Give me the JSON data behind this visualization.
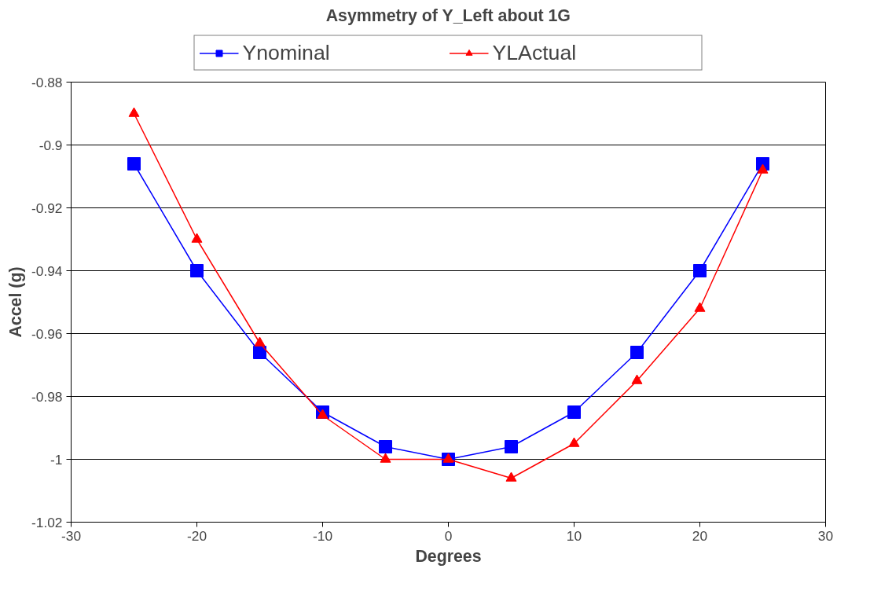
{
  "chart_data": {
    "type": "line",
    "title": "Asymmetry of Y_Left about 1G",
    "xlabel": "Degrees",
    "ylabel": "Accel (g)",
    "x": [
      -25,
      -20,
      -15,
      -10,
      -5,
      0,
      5,
      10,
      15,
      20,
      25
    ],
    "series": [
      {
        "name": "Ynominal",
        "color": "#0000ff",
        "marker": "square",
        "values": [
          -0.906,
          -0.94,
          -0.966,
          -0.985,
          -0.996,
          -1.0,
          -0.996,
          -0.985,
          -0.966,
          -0.94,
          -0.906
        ]
      },
      {
        "name": "YLActual",
        "color": "#ff0000",
        "marker": "triangle",
        "values": [
          -0.89,
          -0.93,
          -0.963,
          -0.986,
          -1.0,
          -1.0,
          -1.006,
          -0.995,
          -0.975,
          -0.952,
          -0.908
        ]
      }
    ],
    "xlim": [
      -30,
      30
    ],
    "xticks": [
      -30,
      -20,
      -10,
      0,
      10,
      20,
      30
    ],
    "ylim": [
      -1.02,
      -0.88
    ],
    "yticks": [
      -1.02,
      -1,
      -0.98,
      -0.96,
      -0.94,
      -0.92,
      -0.9,
      -0.88
    ],
    "grid": "y",
    "legend": "top"
  }
}
